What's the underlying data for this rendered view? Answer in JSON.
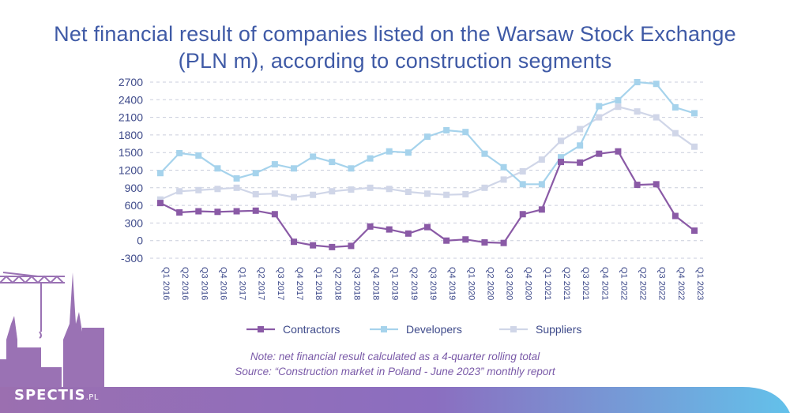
{
  "title_line1": "Net financial result of companies listed on the Warsaw Stock Exchange",
  "title_line2": "(PLN m), according to construction segments",
  "note1": "Note: net financial result calculated as a 4-quarter rolling total",
  "note2": "Source: “Construction market in Poland - June 2023” monthly report",
  "logo_main": "SPECTIS",
  "logo_suffix": ".PL",
  "chart_data": {
    "type": "line",
    "title": "Net financial result of companies listed on the Warsaw Stock Exchange (PLN m), according to construction segments",
    "ylim": [
      -300,
      2700
    ],
    "yticks": [
      -300,
      0,
      300,
      600,
      900,
      1200,
      1500,
      1800,
      2100,
      2400,
      2700
    ],
    "grid": true,
    "legend_position": "bottom",
    "categories": [
      "Q1 2016",
      "Q2 2016",
      "Q3 2016",
      "Q4 2016",
      "Q1 2017",
      "Q2 2017",
      "Q3 2017",
      "Q4 2017",
      "Q1 2018",
      "Q2 2018",
      "Q3 2018",
      "Q4 2018",
      "Q1 2019",
      "Q2 2019",
      "Q3 2019",
      "Q4 2019",
      "Q1 2020",
      "Q2 2020",
      "Q3 2020",
      "Q4 2020",
      "Q1 2021",
      "Q2 2021",
      "Q3 2021",
      "Q4 2021",
      "Q1 2022",
      "Q2 2022",
      "Q3 2022",
      "Q4 2022",
      "Q1 2023"
    ],
    "series": [
      {
        "name": "Contractors",
        "color": "#8a5aa6",
        "values": [
          640,
          480,
          500,
          490,
          500,
          510,
          450,
          -20,
          -80,
          -110,
          -90,
          240,
          190,
          120,
          230,
          0,
          20,
          -30,
          -40,
          450,
          530,
          1340,
          1330,
          1480,
          1520,
          950,
          960,
          420,
          170
        ]
      },
      {
        "name": "Developers",
        "color": "#a6d3ec",
        "values": [
          1150,
          1490,
          1450,
          1230,
          1060,
          1150,
          1300,
          1230,
          1430,
          1340,
          1230,
          1400,
          1520,
          1500,
          1770,
          1880,
          1850,
          1480,
          1250,
          960,
          960,
          1420,
          1620,
          2290,
          2390,
          2700,
          2670,
          2270,
          2170
        ]
      },
      {
        "name": "Suppliers",
        "color": "#d0d6e8",
        "values": [
          700,
          840,
          860,
          880,
          900,
          790,
          800,
          740,
          780,
          840,
          870,
          900,
          880,
          830,
          800,
          780,
          790,
          900,
          1040,
          1180,
          1380,
          1700,
          1900,
          2100,
          2280,
          2200,
          2100,
          1830,
          1600
        ]
      }
    ]
  }
}
